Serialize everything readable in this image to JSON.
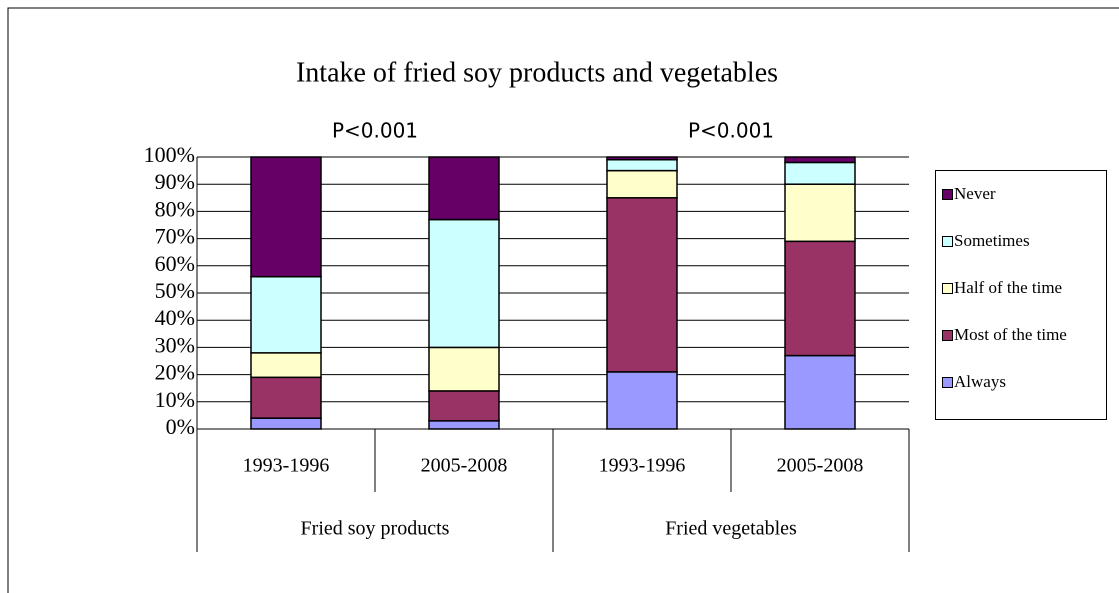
{
  "chart_data": {
    "type": "stacked_bar",
    "title": "Intake of fried soy products and vegetables",
    "annotations": [
      "P<0.001",
      "P<0.001"
    ],
    "groups": [
      "Fried soy products",
      "Fried vegetables"
    ],
    "categories": [
      "1993-1996",
      "2005-2008",
      "1993-1996",
      "2005-2008"
    ],
    "series": [
      {
        "name": "Always",
        "color": "#9999ff",
        "values": [
          4,
          3,
          21,
          27
        ]
      },
      {
        "name": "Most of the time",
        "color": "#993366",
        "values": [
          15,
          11,
          64,
          42
        ]
      },
      {
        "name": "Half of the time",
        "color": "#ffffcc",
        "values": [
          9,
          16,
          10,
          21
        ]
      },
      {
        "name": "Sometimes",
        "color": "#ccffff",
        "values": [
          28,
          47,
          4,
          8
        ]
      },
      {
        "name": "Never",
        "color": "#660066",
        "values": [
          44,
          23,
          1,
          2
        ]
      }
    ],
    "ylim": [
      0,
      100
    ],
    "yticks": [
      {
        "value": 0,
        "label": "0%"
      },
      {
        "value": 10,
        "label": "10%"
      },
      {
        "value": 20,
        "label": "20%"
      },
      {
        "value": 30,
        "label": "30%"
      },
      {
        "value": 40,
        "label": "40%"
      },
      {
        "value": 50,
        "label": "50%"
      },
      {
        "value": 60,
        "label": "60%"
      },
      {
        "value": 70,
        "label": "70%"
      },
      {
        "value": 80,
        "label": "80%"
      },
      {
        "value": 90,
        "label": "90%"
      },
      {
        "value": 100,
        "label": "100%"
      }
    ],
    "grid": true,
    "legend": "right"
  }
}
